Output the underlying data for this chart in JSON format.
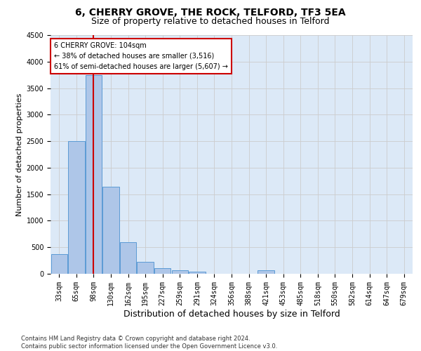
{
  "title1": "6, CHERRY GROVE, THE ROCK, TELFORD, TF3 5EA",
  "title2": "Size of property relative to detached houses in Telford",
  "xlabel": "Distribution of detached houses by size in Telford",
  "ylabel": "Number of detached properties",
  "categories": [
    "33sqm",
    "65sqm",
    "98sqm",
    "130sqm",
    "162sqm",
    "195sqm",
    "227sqm",
    "259sqm",
    "291sqm",
    "324sqm",
    "356sqm",
    "388sqm",
    "421sqm",
    "453sqm",
    "485sqm",
    "518sqm",
    "550sqm",
    "582sqm",
    "614sqm",
    "647sqm",
    "679sqm"
  ],
  "values": [
    370,
    2500,
    3750,
    1640,
    590,
    230,
    105,
    60,
    40,
    0,
    0,
    0,
    60,
    0,
    0,
    0,
    0,
    0,
    0,
    0,
    0
  ],
  "bar_color": "#aec6e8",
  "bar_edge_color": "#5b9bd5",
  "vline_x": 2,
  "vline_color": "#cc0000",
  "annotation_text": "6 CHERRY GROVE: 104sqm\n← 38% of detached houses are smaller (3,516)\n61% of semi-detached houses are larger (5,607) →",
  "annotation_box_color": "#ffffff",
  "annotation_box_edge": "#cc0000",
  "ylim": [
    0,
    4500
  ],
  "yticks": [
    0,
    500,
    1000,
    1500,
    2000,
    2500,
    3000,
    3500,
    4000,
    4500
  ],
  "grid_color": "#cccccc",
  "bg_color": "#dce9f7",
  "footer": "Contains HM Land Registry data © Crown copyright and database right 2024.\nContains public sector information licensed under the Open Government Licence v3.0.",
  "title_fontsize": 10,
  "subtitle_fontsize": 9,
  "tick_fontsize": 7,
  "ylabel_fontsize": 8,
  "xlabel_fontsize": 9,
  "annotation_fontsize": 7,
  "footer_fontsize": 6
}
